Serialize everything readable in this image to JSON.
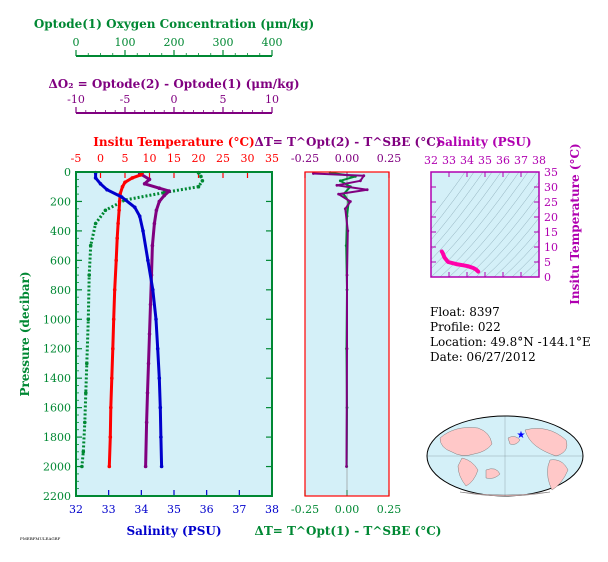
{
  "colors": {
    "oxygen": "#008833",
    "delta_o2": "#800080",
    "temperature": "#ff0000",
    "salinity": "#0000cc",
    "pressure": "#008833",
    "delta_t": "#800080",
    "delta_t2": "#008833",
    "salinity_ts": "#b000b0",
    "ts_curve": "#ff00aa",
    "panel_bg": "#d4f0f8"
  },
  "tiny_label": "PMEBFMULEAGRF",
  "info": {
    "float": "Float:  8397",
    "profile": "Profile:  022",
    "location": "Location:  49.8°N  -144.1°E",
    "date": "Date:  06/27/2012"
  },
  "chart_data": [
    {
      "type": "line",
      "title": "",
      "ylabel": "Pressure (decibar)",
      "ylim": [
        2200,
        0
      ],
      "yticks": [
        "0",
        "200",
        "400",
        "600",
        "800",
        "1000",
        "1200",
        "1400",
        "1600",
        "1800",
        "2000",
        "2200"
      ],
      "axes": [
        {
          "label": "Optode(1) Oxygen Concentration (μm/kg)",
          "range": [
            0,
            400
          ],
          "ticks": [
            "0",
            "100",
            "200",
            "300",
            "400"
          ]
        },
        {
          "label": "ΔO₂ = Optode(2) - Optode(1)     (μm/kg)",
          "range": [
            -10,
            10
          ],
          "ticks": [
            "-10",
            "-5",
            "0",
            "5",
            "10"
          ]
        },
        {
          "label": "Insitu Temperature (°C)",
          "range": [
            -5,
            35
          ],
          "ticks": [
            "-5",
            "0",
            "5",
            "10",
            "15",
            "20",
            "25",
            "30",
            "35"
          ]
        },
        {
          "label": "Salinity (PSU)",
          "range": [
            32,
            38
          ],
          "ticks": [
            "32",
            "33",
            "34",
            "35",
            "36",
            "37",
            "38"
          ]
        }
      ],
      "series": [
        {
          "name": "Optode(1) Oxygen Concentration",
          "axis": 0,
          "values": [
            [
              250,
              5
            ],
            [
              255,
              30
            ],
            [
              258,
              60
            ],
            [
              250,
              100
            ],
            [
              180,
              140
            ],
            [
              100,
              190
            ],
            [
              60,
              260
            ],
            [
              40,
              350
            ],
            [
              30,
              500
            ],
            [
              27,
              700
            ],
            [
              25,
              1000
            ],
            [
              22,
              1300
            ],
            [
              20,
              1500
            ],
            [
              18,
              1700
            ],
            [
              15,
              1900
            ],
            [
              12,
              2000
            ]
          ]
        },
        {
          "name": "ΔO₂",
          "axis": 1,
          "values": [
            [
              -3.5,
              10
            ],
            [
              -2.5,
              50
            ],
            [
              -3,
              80
            ],
            [
              -1.5,
              110
            ],
            [
              -0.5,
              130
            ],
            [
              -1,
              160
            ],
            [
              -1.5,
              200
            ],
            [
              -1.8,
              260
            ],
            [
              -2.0,
              350
            ],
            [
              -2.2,
              500
            ],
            [
              -2.3,
              700
            ],
            [
              -2.4,
              900
            ],
            [
              -2.5,
              1100
            ],
            [
              -2.6,
              1300
            ],
            [
              -2.7,
              1500
            ],
            [
              -2.8,
              1700
            ],
            [
              -2.9,
              2000
            ]
          ]
        },
        {
          "name": "Insitu Temperature",
          "axis": 2,
          "values": [
            [
              8.5,
              5
            ],
            [
              8.2,
              20
            ],
            [
              6.5,
              40
            ],
            [
              5.0,
              70
            ],
            [
              4.5,
              100
            ],
            [
              4.0,
              150
            ],
            [
              3.9,
              200
            ],
            [
              3.8,
              260
            ],
            [
              3.6,
              350
            ],
            [
              3.4,
              450
            ],
            [
              3.2,
              600
            ],
            [
              2.9,
              800
            ],
            [
              2.7,
              1000
            ],
            [
              2.5,
              1200
            ],
            [
              2.3,
              1400
            ],
            [
              2.1,
              1600
            ],
            [
              2.0,
              1800
            ],
            [
              1.8,
              2000
            ]
          ]
        },
        {
          "name": "Salinity",
          "axis": 3,
          "values": [
            [
              32.6,
              5
            ],
            [
              32.6,
              40
            ],
            [
              32.75,
              80
            ],
            [
              32.95,
              120
            ],
            [
              33.4,
              170
            ],
            [
              33.8,
              240
            ],
            [
              33.95,
              300
            ],
            [
              34.05,
              400
            ],
            [
              34.2,
              600
            ],
            [
              34.35,
              800
            ],
            [
              34.45,
              1000
            ],
            [
              34.5,
              1200
            ],
            [
              34.55,
              1400
            ],
            [
              34.58,
              1600
            ],
            [
              34.6,
              1800
            ],
            [
              34.62,
              2000
            ]
          ]
        }
      ]
    },
    {
      "type": "line",
      "title": "",
      "ylim": [
        2200,
        0
      ],
      "axes": [
        {
          "label": "ΔT= T^Opt(2) - T^SBE (°C)",
          "range": [
            -0.25,
            0.25
          ],
          "ticks": [
            "-0.25",
            "0.00",
            "0.25"
          ]
        },
        {
          "label": "ΔT= T^Opt(1) - T^SBE (°C)",
          "range": [
            -0.25,
            0.25
          ],
          "ticks": [
            "-0.25",
            "0.00",
            "0.25"
          ]
        }
      ],
      "series": [
        {
          "name": "ΔT Opt(2)",
          "axis": 0,
          "values": [
            [
              -0.1,
              5
            ],
            [
              0.05,
              30
            ],
            [
              -0.04,
              60
            ],
            [
              0.02,
              100
            ],
            [
              -0.02,
              150
            ],
            [
              0.01,
              200
            ],
            [
              0.0,
              300
            ],
            [
              -0.005,
              500
            ],
            [
              0.0,
              800
            ],
            [
              -0.003,
              1200
            ],
            [
              0.0,
              1600
            ],
            [
              -0.002,
              2000
            ]
          ]
        },
        {
          "name": "ΔT Opt(1)",
          "axis": 1,
          "values": [
            [
              -0.2,
              10
            ],
            [
              0.1,
              25
            ],
            [
              0.08,
              60
            ],
            [
              -0.06,
              90
            ],
            [
              0.12,
              120
            ],
            [
              -0.05,
              150
            ],
            [
              0.02,
              200
            ],
            [
              -0.01,
              250
            ],
            [
              0.005,
              400
            ],
            [
              0.0,
              700
            ],
            [
              0.0,
              1200
            ],
            [
              -0.003,
              2000
            ]
          ]
        }
      ]
    },
    {
      "type": "line",
      "title": "",
      "ylabel": "Insitu Temperature (°C)",
      "xlabel": "Salinity (PSU)",
      "xlim": [
        32,
        38
      ],
      "ylim": [
        0,
        35
      ],
      "xticks": [
        "32",
        "33",
        "34",
        "35",
        "36",
        "37",
        "38"
      ],
      "yticks": [
        "0",
        "5",
        "10",
        "15",
        "20",
        "25",
        "30",
        "35"
      ],
      "series": [
        {
          "name": "T-S",
          "values": [
            [
              32.6,
              8.5
            ],
            [
              32.65,
              8.0
            ],
            [
              32.75,
              6.5
            ],
            [
              32.95,
              5.0
            ],
            [
              33.4,
              4.3
            ],
            [
              33.8,
              3.9
            ],
            [
              34.05,
              3.6
            ],
            [
              34.35,
              3.0
            ],
            [
              34.5,
              2.5
            ],
            [
              34.62,
              1.8
            ]
          ]
        }
      ]
    }
  ]
}
